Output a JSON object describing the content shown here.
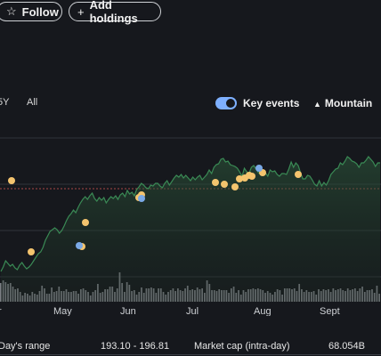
{
  "header": {
    "follow_icon": "star-outline-icon",
    "follow_label": "Follow",
    "add_icon": "plus-icon",
    "add_label": "Add holdings"
  },
  "ranges": {
    "partial_label": "5Y",
    "all_label": "All"
  },
  "controls": {
    "key_events_label": "Key events",
    "key_events_on": true,
    "chart_type_icon": "mountain-icon",
    "chart_type_label": "Mountain"
  },
  "chart_data": {
    "type": "area",
    "x_tick_labels": [
      "r",
      "May",
      "Jun",
      "Jul",
      "Aug",
      "Sept"
    ],
    "line_color": "#3a8a55",
    "key_event_colors": {
      "dividend": "#f4c46e",
      "earnings": "#7aa9e6"
    },
    "price_series": [
      305,
      300,
      293,
      296,
      299,
      297,
      301,
      303,
      298,
      295,
      299,
      302,
      300,
      297,
      293,
      289,
      285,
      283,
      278,
      270,
      265,
      260,
      258,
      256,
      258,
      262,
      259,
      254,
      248,
      243,
      240,
      236,
      239,
      233,
      228,
      224,
      221,
      224,
      220,
      217,
      223,
      226,
      222,
      225,
      222,
      228,
      224,
      221,
      223,
      220,
      224,
      219,
      217,
      221,
      214,
      218,
      216,
      220,
      213,
      210,
      206,
      208,
      211,
      212,
      208,
      209,
      206,
      206,
      209,
      211,
      206,
      203,
      208,
      204,
      200,
      197,
      199,
      196,
      200,
      197,
      200,
      203,
      199,
      202,
      199,
      197,
      202,
      199,
      196,
      191,
      195,
      188,
      185,
      184,
      179,
      178,
      182,
      181,
      185,
      186,
      187,
      189,
      193,
      198,
      189,
      193,
      195,
      188,
      186,
      190,
      194,
      196,
      193,
      194,
      198,
      191,
      193,
      192,
      196,
      198,
      195,
      195,
      196,
      190,
      182,
      188,
      183,
      186,
      194,
      201,
      201,
      197,
      198,
      202,
      207,
      209,
      203,
      209,
      205,
      208,
      203,
      196,
      193,
      190,
      189,
      183,
      185,
      181,
      176,
      178,
      181,
      182,
      184,
      188,
      183,
      183,
      180,
      176,
      179,
      182,
      187,
      183,
      183
    ],
    "dividend_events_y": [
      203,
      283,
      277,
      250,
      222,
      219,
      205,
      207,
      210,
      201,
      200,
      197,
      198,
      194,
      196
    ],
    "earnings_events_y": [
      223,
      276,
      189
    ],
    "volume_values": [
      21,
      24,
      22,
      20,
      21,
      17,
      14,
      15,
      11,
      7,
      10,
      9,
      7,
      11,
      9,
      8,
      12,
      18,
      15,
      9,
      9,
      16,
      11,
      12,
      17,
      12,
      12,
      14,
      11,
      11,
      12,
      12,
      9,
      14,
      15,
      13,
      11,
      7,
      11,
      13,
      20,
      10,
      11,
      14,
      14,
      17,
      17,
      11,
      15,
      33,
      21,
      11,
      22,
      19,
      12,
      13,
      8,
      11,
      16,
      10,
      15,
      15,
      16,
      15,
      10,
      15,
      15,
      11,
      8,
      11,
      13,
      15,
      12,
      15,
      13,
      12,
      15,
      18,
      13,
      14,
      13,
      16,
      14,
      15,
      10,
      24,
      20,
      13,
      13,
      12,
      14,
      13,
      13,
      13,
      10,
      15,
      17,
      10,
      13,
      8,
      13,
      11,
      14,
      14,
      15,
      14,
      15,
      14,
      13,
      10,
      12,
      10,
      8,
      11,
      14,
      13,
      8,
      15,
      15,
      15,
      14,
      15,
      12,
      20,
      14,
      11,
      13,
      11,
      11,
      12,
      8,
      14,
      12,
      14,
      13,
      14,
      11,
      15,
      13,
      14,
      15,
      13,
      12,
      15,
      13,
      14,
      15,
      12,
      15,
      17,
      11,
      13,
      13,
      14,
      10,
      18,
      9
    ]
  },
  "stats": {
    "days_range_label": "Day's range",
    "days_range_value": "193.10 - 196.81",
    "market_cap_label": "Market cap (intra-day)",
    "market_cap_value": "68.054B"
  }
}
